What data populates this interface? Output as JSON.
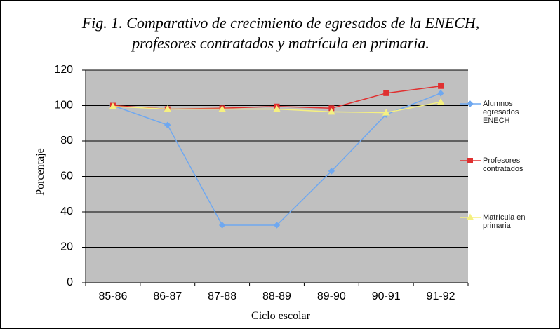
{
  "chart_data": {
    "type": "line",
    "title": [
      "Fig. 1. Comparativo de crecimiento de egresados de la ENECH,",
      "profesores contratados y matrícula en primaria."
    ],
    "x_label": "Ciclo escolar",
    "y_label": "Porcentaje",
    "categories": [
      "85-86",
      "86-87",
      "87-88",
      "88-89",
      "89-90",
      "90-91",
      "91-92"
    ],
    "series": [
      {
        "name": "Alumnos egresados ENECH",
        "color": "#6fa8f0",
        "marker": "diamond",
        "values": [
          100,
          89,
          32.5,
          32.5,
          63,
          95,
          107
        ]
      },
      {
        "name": "Profesores contratados",
        "color": "#e03030",
        "marker": "square",
        "values": [
          100,
          98,
          98.5,
          99.5,
          98.5,
          107,
          111
        ]
      },
      {
        "name": "Matrícula en primaria",
        "color": "#f5f080",
        "marker": "triangle",
        "values": [
          99.5,
          98,
          98,
          98,
          96.5,
          96,
          102
        ]
      }
    ],
    "ylim": [
      0,
      120
    ],
    "yticks": [
      0,
      20,
      40,
      60,
      80,
      100,
      120
    ],
    "grid": true,
    "legend": "right"
  }
}
